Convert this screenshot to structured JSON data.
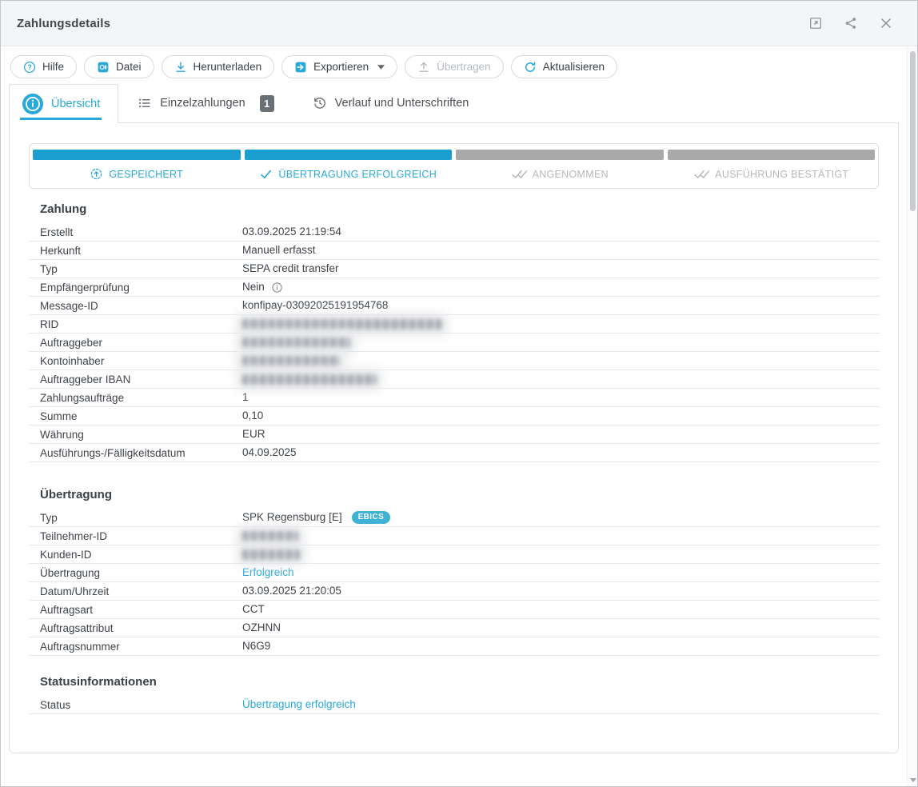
{
  "colors": {
    "accent": "#29a9da",
    "progress_done": "#1b9fd0",
    "ebics_badge": "#3fb2d5",
    "pending_bar": "#a9a9a9",
    "badge_gray": "#6a7076"
  },
  "window": {
    "title": "Zahlungsdetails"
  },
  "titlebar": {
    "actions": [
      {
        "name": "open-in-new"
      },
      {
        "name": "share"
      },
      {
        "name": "close"
      }
    ]
  },
  "toolbar": {
    "buttons": [
      {
        "name": "help-button",
        "label": "Hilfe",
        "icon": "help",
        "enabled": true,
        "caret": false
      },
      {
        "name": "file-button",
        "label": "Datei",
        "icon": "file",
        "enabled": true,
        "caret": false
      },
      {
        "name": "download-button",
        "label": "Herunterladen",
        "icon": "download",
        "enabled": true,
        "caret": false
      },
      {
        "name": "export-button",
        "label": "Exportieren",
        "icon": "export",
        "enabled": true,
        "caret": true
      },
      {
        "name": "transfer-button",
        "label": "Übertragen",
        "icon": "upload",
        "enabled": false,
        "caret": false
      },
      {
        "name": "refresh-button",
        "label": "Aktualisieren",
        "icon": "refresh",
        "enabled": true,
        "caret": false
      }
    ]
  },
  "tabs": [
    {
      "name": "tab-uebersicht",
      "label": "Übersicht",
      "icon": "info-filled",
      "active": true
    },
    {
      "name": "tab-einzelzahlungen",
      "label": "Einzelzahlungen",
      "icon": "list",
      "badge": "1",
      "active": false
    },
    {
      "name": "tab-verlauf-und-unterschriften",
      "label": "Verlauf und Unterschriften",
      "icon": "history",
      "active": false
    }
  ],
  "progress": {
    "steps": [
      {
        "name": "saved",
        "label": "GESPEICHERT",
        "icon": "save-circle",
        "state": "done"
      },
      {
        "name": "transfer-successful",
        "label": "ÜBERTRAGUNG ERFOLGREICH",
        "icon": "check",
        "state": "done"
      },
      {
        "name": "accepted",
        "label": "ANGENOMMEN",
        "icon": "double-check",
        "state": "pending"
      },
      {
        "name": "execution-confirmed",
        "label": "AUSFÜHRUNG BESTÄTIGT",
        "icon": "double-check",
        "state": "pending"
      }
    ]
  },
  "sections": [
    {
      "title": "Zahlung",
      "rows": [
        {
          "label": "Erstellt",
          "value": "03.09.2025 21:19:54"
        },
        {
          "label": "Herkunft",
          "value": "Manuell erfasst"
        },
        {
          "label": "Typ",
          "value": "SEPA credit transfer"
        },
        {
          "label": "Empfängerprüfung",
          "value": "Nein",
          "info_icon": true
        },
        {
          "label": "Message-ID",
          "value": "konfipay-03092025191954768"
        },
        {
          "label": "RID",
          "value": "",
          "redacted": true,
          "redact_width": 250
        },
        {
          "label": "Auftraggeber",
          "value": "",
          "redacted": true,
          "redact_width": 135
        },
        {
          "label": "Kontoinhaber",
          "value": "",
          "redacted": true,
          "redact_width": 122
        },
        {
          "label": "Auftraggeber IBAN",
          "value": "",
          "redacted": true,
          "redact_width": 168
        },
        {
          "label": "Zahlungsaufträge",
          "value": "1"
        },
        {
          "label": "Summe",
          "value": "0,10"
        },
        {
          "label": "Währung",
          "value": "EUR"
        },
        {
          "label": "Ausführungs-/Fälligkeitsdatum",
          "value": "04.09.2025"
        }
      ]
    },
    {
      "title": "Übertragung",
      "rows": [
        {
          "label": "Typ",
          "value": "SPK Regensburg [E]",
          "badge": "EBICS"
        },
        {
          "label": "Teilnehmer-ID",
          "value": "",
          "redacted": true,
          "redact_width": 70
        },
        {
          "label": "Kunden-ID",
          "value": "",
          "redacted": true,
          "redact_width": 72
        },
        {
          "label": "Übertragung",
          "value": "Erfolgreich",
          "accent": true
        },
        {
          "label": "Datum/Uhrzeit",
          "value": "03.09.2025 21:20:05"
        },
        {
          "label": "Auftragsart",
          "value": "CCT"
        },
        {
          "label": "Auftragsattribut",
          "value": "OZHNN"
        },
        {
          "label": "Auftragsnummer",
          "value": "N6G9"
        }
      ]
    },
    {
      "title": "Statusinformationen",
      "rows": [
        {
          "label": "Status",
          "value": "Übertragung erfolgreich",
          "accent": true
        }
      ]
    }
  ]
}
